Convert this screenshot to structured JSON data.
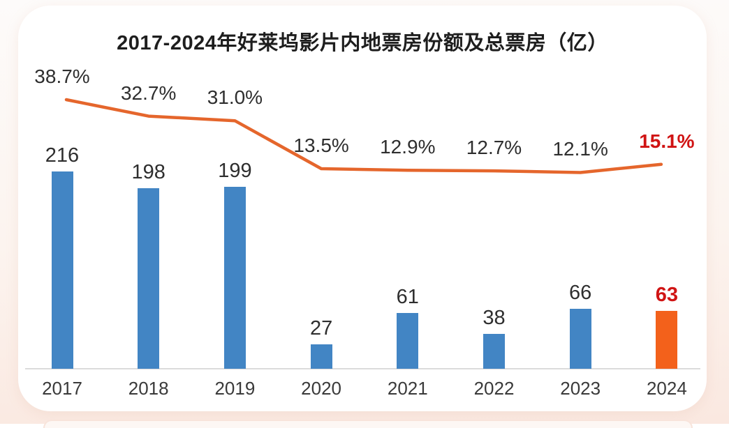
{
  "chart": {
    "title": "2017-2024年好莱坞影片内地票房份额及总票房（亿）"
  },
  "chart_data": {
    "type": "bar+line",
    "title": "2017-2024年好莱坞影片内地票房份额及总票房（亿）",
    "categories": [
      "2017",
      "2018",
      "2019",
      "2020",
      "2021",
      "2022",
      "2023",
      "2024"
    ],
    "series": [
      {
        "name": "总票房（亿）",
        "type": "bar",
        "values": [
          216,
          198,
          199,
          27,
          61,
          38,
          66,
          63
        ]
      },
      {
        "name": "票房份额",
        "type": "line",
        "values_pct": [
          38.7,
          32.7,
          31.0,
          13.5,
          12.9,
          12.7,
          12.1,
          15.1
        ],
        "labels": [
          "38.7%",
          "32.7%",
          "31.0%",
          "13.5%",
          "12.9%",
          "12.7%",
          "12.1%",
          "15.1%"
        ]
      }
    ],
    "highlight_index": 7,
    "legend": "none",
    "grid": "off",
    "colors": {
      "bar": "#4285c4",
      "bar_highlight": "#f3611b",
      "line": "#e5662c",
      "label": "#2e2e2e",
      "label_highlight": "#d01414",
      "axis": "#dbdbdb"
    }
  }
}
